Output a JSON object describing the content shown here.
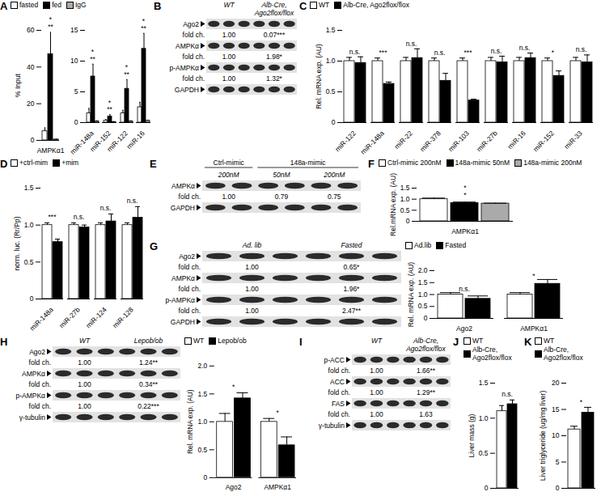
{
  "panels": [
    "A",
    "B",
    "C",
    "D",
    "E",
    "F",
    "G",
    "H",
    "I",
    "J",
    "K"
  ],
  "chart_data": [
    {
      "panel": "A",
      "type": "bar",
      "y_label": "% Input",
      "legend": "top",
      "categories": [
        "AMPKα1"
      ],
      "series": [
        {
          "name": "fasted",
          "color": "#ffffff",
          "values": [
            5
          ],
          "errors": [
            2
          ]
        },
        {
          "name": "fed",
          "color": "#000000",
          "values": [
            47
          ],
          "errors": [
            12
          ]
        },
        {
          "name": "IgG",
          "color": "#aaaaaa",
          "values": [
            0.5
          ],
          "errors": [
            0.3
          ]
        }
      ],
      "ylim": [
        0,
        60
      ],
      "yticks": [
        0,
        20,
        40,
        60
      ],
      "significance": [
        [
          "*",
          "**"
        ]
      ]
    },
    {
      "panel": "A",
      "type": "bar",
      "categories": [
        "miR-148a",
        "miR-152",
        "miR-122",
        "miR-16"
      ],
      "series": [
        {
          "name": "fasted",
          "color": "#ffffff",
          "values": [
            1.5,
            0.3,
            1.5,
            2.5
          ],
          "errors": [
            0.8,
            0.2,
            0.5,
            0.8
          ]
        },
        {
          "name": "fed",
          "color": "#000000",
          "values": [
            7.5,
            1.0,
            5.5,
            12
          ],
          "errors": [
            2,
            0.3,
            1.5,
            2.5
          ]
        },
        {
          "name": "IgG",
          "color": "#aaaaaa",
          "values": [
            0.2,
            0.1,
            0.2,
            0.3
          ],
          "errors": [
            0.1,
            0.05,
            0.1,
            0.1
          ]
        }
      ],
      "ylim": [
        0,
        15
      ],
      "yticks": [
        0,
        5,
        10,
        15
      ],
      "significance": [
        [
          "*",
          "**"
        ],
        [
          "*",
          "**"
        ],
        [
          "*",
          "**"
        ],
        [
          "*",
          "**"
        ]
      ]
    },
    {
      "panel": "C",
      "type": "bar",
      "y_label": "Rel. mRNA exp. (AU)",
      "legend": "top",
      "categories": [
        "miR-122",
        "miR-148a",
        "miR-22",
        "miR-378",
        "miR-103",
        "miR-27b",
        "miR-16",
        "miR-152",
        "miR-33"
      ],
      "series": [
        {
          "name": "WT",
          "color": "#ffffff",
          "values": [
            1,
            1,
            1,
            1,
            1,
            1,
            1,
            1,
            1
          ],
          "errors": [
            0.06,
            0.05,
            0.06,
            0.05,
            0.05,
            0.06,
            0.06,
            0.05,
            0.06
          ]
        },
        {
          "name": "Alb-Cre, Ago2flox/flox",
          "color": "#000000",
          "values": [
            0.97,
            0.63,
            1.05,
            0.68,
            0.36,
            0.98,
            1.05,
            0.76,
            0.98
          ],
          "errors": [
            0.1,
            0.03,
            0.15,
            0.12,
            0.02,
            0.1,
            0.08,
            0.08,
            0.12
          ]
        }
      ],
      "ylim": [
        0,
        1.5
      ],
      "yticks": [
        0,
        0.5,
        {
          "value": 1,
          "label": "1.0"
        },
        1.5
      ],
      "significance": [
        [
          "n.s."
        ],
        [
          "***"
        ],
        [
          "n.s."
        ],
        [
          "n.s."
        ],
        [
          "***"
        ],
        [
          "n.s."
        ],
        [
          "n.s."
        ],
        [
          "*"
        ],
        [
          "n.s."
        ]
      ]
    },
    {
      "panel": "D",
      "type": "bar",
      "y_label": "norm. luc. (Rr/Pp)",
      "legend": "top",
      "categories": [
        "miR-148a",
        "miR-27b",
        "miR-124",
        "miR-128"
      ],
      "series": [
        {
          "name": "+ctrl-mim",
          "color": "#ffffff",
          "values": [
            1,
            1,
            1,
            1
          ],
          "errors": [
            0.03,
            0.03,
            0.03,
            0.03
          ]
        },
        {
          "name": "+mim",
          "color": "#000000",
          "values": [
            0.77,
            0.97,
            1.05,
            1.1
          ],
          "errors": [
            0.04,
            0.03,
            0.1,
            0.15
          ]
        }
      ],
      "ylim": [
        0,
        1.5
      ],
      "yticks": [
        0,
        0.5,
        {
          "value": 1,
          "label": "1.0"
        },
        1.5
      ],
      "significance": [
        [
          "***"
        ],
        [
          "n.s."
        ],
        [
          "n.s."
        ],
        [
          "n.s."
        ]
      ]
    },
    {
      "panel": "F",
      "type": "bar",
      "y_label": "Rel.mRNA exp. (AU)",
      "legend": "top",
      "categories": [
        "AMPKα1"
      ],
      "series": [
        {
          "name": "Ctrl-mimic 200nM",
          "color": "#ffffff",
          "values": [
            1
          ],
          "errors": [
            0.05
          ]
        },
        {
          "name": "148a-mimic 50nM",
          "color": "#000000",
          "values": [
            0.83
          ],
          "errors": [
            0.04
          ]
        },
        {
          "name": "148a-mimic 200nM",
          "color": "#aaaaaa",
          "values": [
            0.8
          ],
          "errors": [
            0.02
          ]
        }
      ],
      "ylim": [
        0,
        1.5
      ],
      "yticks": [
        0,
        0.5,
        {
          "value": 1,
          "label": "1.0"
        },
        1.5
      ],
      "significance": [
        [
          "*",
          "*"
        ]
      ]
    },
    {
      "panel": "G",
      "type": "bar",
      "y_label": "Rel. mRNA exp. (AU)",
      "legend": "top",
      "categories": [
        "Ago2",
        "AMPKα1"
      ],
      "series": [
        {
          "name": "Ad.lib",
          "color": "#ffffff",
          "values": [
            1,
            1
          ],
          "errors": [
            0.08,
            0.08
          ]
        },
        {
          "name": "Fasted",
          "color": "#000000",
          "values": [
            0.82,
            1.45
          ],
          "errors": [
            0.12,
            0.18
          ]
        }
      ],
      "ylim": [
        0,
        2
      ],
      "yticks": [
        0,
        0.5,
        {
          "value": 1,
          "label": "1.0"
        },
        1.5,
        {
          "value": 2,
          "label": "2.0"
        }
      ],
      "significance": [
        [
          "n.s."
        ],
        [
          "*"
        ]
      ]
    },
    {
      "panel": "H",
      "type": "bar",
      "y_label": "Rel. mRNA exp. (AU)",
      "legend": "top",
      "categories": [
        "Ago2",
        "AMPKα1"
      ],
      "series": [
        {
          "name": "WT",
          "color": "#ffffff",
          "values": [
            1,
            1
          ],
          "errors": [
            0.15,
            0.06
          ]
        },
        {
          "name": "Lepob/ob",
          "color": "#000000",
          "values": [
            1.42,
            0.58
          ],
          "errors": [
            0.1,
            0.15
          ]
        }
      ],
      "ylim": [
        0,
        2
      ],
      "yticks": [
        0,
        0.5,
        {
          "value": 1,
          "label": "1.0"
        },
        1.5,
        {
          "value": 2,
          "label": "2.0"
        }
      ],
      "significance": [
        [
          "*"
        ],
        [
          "*"
        ]
      ]
    },
    {
      "panel": "J",
      "type": "bar",
      "y_label": "Liver mass (g)",
      "legend": "top",
      "categories": [
        null
      ],
      "series": [
        {
          "name": "WT",
          "color": "#ffffff",
          "values": [
            1.1
          ],
          "errors": [
            0.08
          ]
        },
        {
          "name": "Alb-Cre, Ago2flox/flox",
          "color": "#000000",
          "values": [
            1.2
          ],
          "errors": [
            0.06
          ]
        }
      ],
      "ylim": [
        0,
        1.5
      ],
      "yticks": [
        0,
        0.5,
        {
          "value": 1,
          "label": "1.0"
        },
        1.5
      ],
      "significance": [
        [
          "n.s."
        ]
      ]
    },
    {
      "panel": "K",
      "type": "bar",
      "y_label": "Liver triglyceride (ug/mg liver)",
      "legend": "top",
      "categories": [
        null
      ],
      "series": [
        {
          "name": "WT",
          "color": "#ffffff",
          "values": [
            11.2
          ],
          "errors": [
            0.6
          ]
        },
        {
          "name": "Alb-Cre, Ago2flox/flox",
          "color": "#000000",
          "values": [
            14.4
          ],
          "errors": [
            1.0
          ]
        }
      ],
      "ylim": [
        0,
        20
      ],
      "yticks": [
        0,
        5,
        10,
        15,
        20
      ],
      "significance": [
        [
          "*"
        ]
      ]
    }
  ],
  "blots": [
    {
      "panel": "B",
      "columns": [
        {
          "label": "WT",
          "lanes": 3
        },
        {
          "label": "Alb-Cre, Ago2flox/flox",
          "lanes": 3
        }
      ],
      "rows": [
        {
          "label": "Ago2",
          "fold_label": "fold ch.",
          "fold": [
            "1.00",
            "0.07***"
          ]
        },
        {
          "label": "AMPKα",
          "fold_label": "fold ch.",
          "fold": [
            "1.00",
            "1.98*"
          ]
        },
        {
          "label": "p-AMPKα",
          "fold_label": "fold ch.",
          "fold": [
            "1.00",
            "1.32*"
          ]
        },
        {
          "label": "GAPDH"
        }
      ]
    },
    {
      "panel": "E",
      "headers": [
        {
          "label": "Ctrl-mimic",
          "span": 1
        },
        {
          "label": "148a-mimic",
          "span": 2
        }
      ],
      "columns": [
        {
          "label": "200nM",
          "lanes": 2
        },
        {
          "label": "50nM",
          "lanes": 2
        },
        {
          "label": "200nM",
          "lanes": 2
        }
      ],
      "rows": [
        {
          "label": "AMPKα",
          "fold_label": "fold ch.",
          "fold": [
            "1.00",
            "0.79",
            "0.75"
          ]
        },
        {
          "label": "GAPDH"
        }
      ]
    },
    {
      "panel": "G",
      "columns": [
        {
          "label": "Ad. lib",
          "lanes": 3
        },
        {
          "label": "Fasted",
          "lanes": 3
        }
      ],
      "rows": [
        {
          "label": "Ago2",
          "fold_label": "fold ch.",
          "fold": [
            "1.00",
            "0.65*"
          ]
        },
        {
          "label": "AMPKα",
          "fold_label": "fold ch.",
          "fold": [
            "1.00",
            "1.96*"
          ]
        },
        {
          "label": "p-AMPKα",
          "fold_label": "fold ch.",
          "fold": [
            "1.00",
            "2.47**"
          ]
        },
        {
          "label": "GAPDH"
        }
      ]
    },
    {
      "panel": "H",
      "columns": [
        {
          "label": "WT",
          "lanes": 3
        },
        {
          "label": "Lepob/ob",
          "lanes": 3
        }
      ],
      "rows": [
        {
          "label": "Ago2",
          "fold_label": "fold ch.",
          "fold": [
            "1.00",
            "1.24**"
          ]
        },
        {
          "label": "AMPKα",
          "fold_label": "fold ch.",
          "fold": [
            "1.00",
            "0.34**"
          ]
        },
        {
          "label": "p-AMPKα",
          "fold_label": "fold ch.",
          "fold": [
            "1.00",
            "0.22***"
          ]
        },
        {
          "label": "γ-tubulin"
        }
      ]
    },
    {
      "panel": "I",
      "columns": [
        {
          "label": "WT",
          "lanes": 3
        },
        {
          "label": "Alb-Cre, Ago2flox/flox",
          "lanes": 3
        }
      ],
      "rows": [
        {
          "label": "p-ACC",
          "fold_label": "fold ch.",
          "fold": [
            "1.00",
            "1.66**"
          ]
        },
        {
          "label": "ACC",
          "fold_label": "fold ch.",
          "fold": [
            "1.00",
            "1.29**"
          ]
        },
        {
          "label": "FAS",
          "fold_label": "fold ch.",
          "fold": [
            "1.00",
            "1.63"
          ]
        },
        {
          "label": "γ-tubulin"
        }
      ]
    }
  ]
}
